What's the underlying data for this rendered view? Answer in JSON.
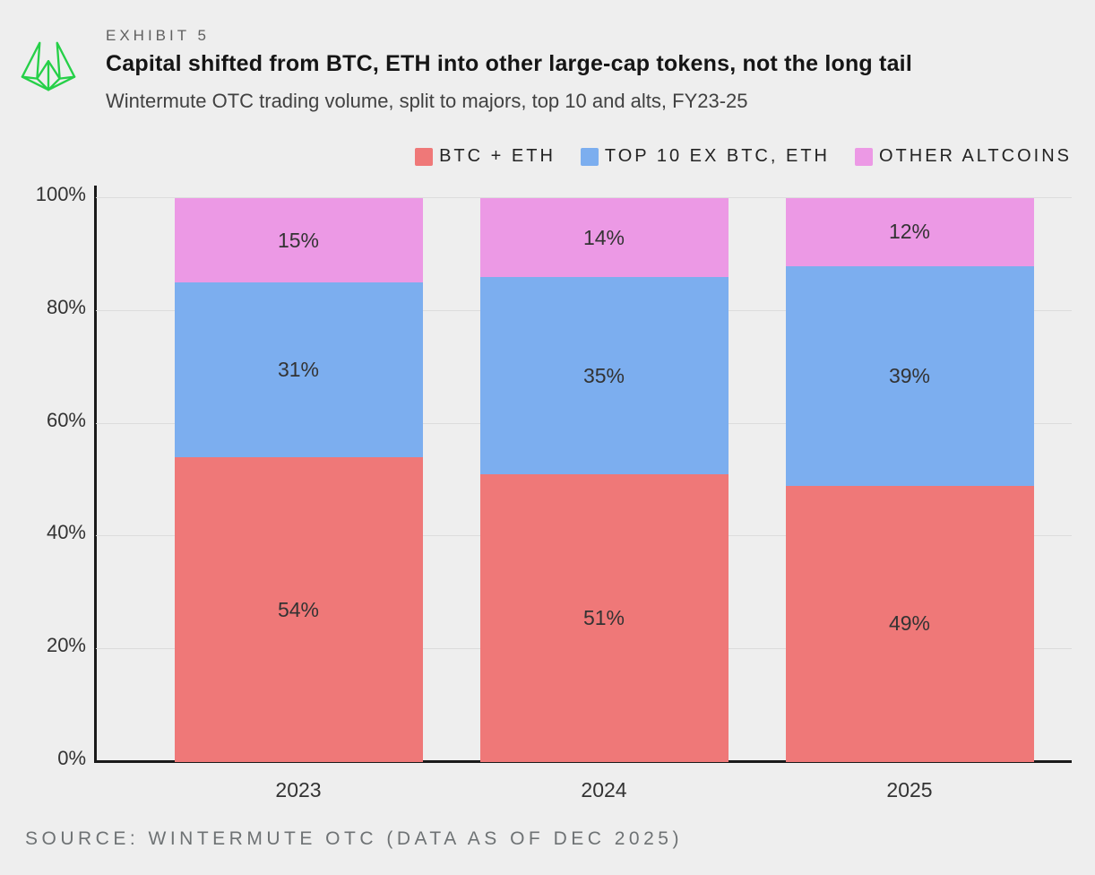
{
  "header": {
    "exhibit_label": "EXHIBIT 5",
    "title": "Capital shifted from BTC, ETH into other large-cap tokens, not the long tail",
    "subtitle": "Wintermute OTC trading volume, split to majors, top 10 and alts, FY23-25"
  },
  "logo": {
    "name": "wintermute-logo",
    "color": "#26d048"
  },
  "source_note": "SOURCE: WINTERMUTE OTC (DATA AS OF DEC 2025)",
  "colors": {
    "background": "#eeeeee",
    "axis": "#1a1a1a",
    "gridline": "#dcdcdc",
    "bar_label_text": "#333333"
  },
  "chart_data": {
    "type": "bar",
    "stacked": true,
    "categories": [
      "2023",
      "2024",
      "2025"
    ],
    "series": [
      {
        "name": "BTC + ETH",
        "color": "#ef7878",
        "values": [
          54,
          51,
          49
        ]
      },
      {
        "name": "TOP 10 EX BTC, ETH",
        "color": "#7caeef",
        "values": [
          31,
          35,
          39
        ]
      },
      {
        "name": "OTHER ALTCOINS",
        "color": "#ec99e5",
        "values": [
          15,
          14,
          12
        ]
      }
    ],
    "value_label_format": "{v}%",
    "y_ticks": [
      {
        "value": 0,
        "label": "0%"
      },
      {
        "value": 20,
        "label": "20%"
      },
      {
        "value": 40,
        "label": "40%"
      },
      {
        "value": 60,
        "label": "60%"
      },
      {
        "value": 80,
        "label": "80%"
      },
      {
        "value": 100,
        "label": "100%"
      }
    ],
    "ylim": [
      0,
      100
    ],
    "grid": true,
    "legend_position": "top-right"
  }
}
